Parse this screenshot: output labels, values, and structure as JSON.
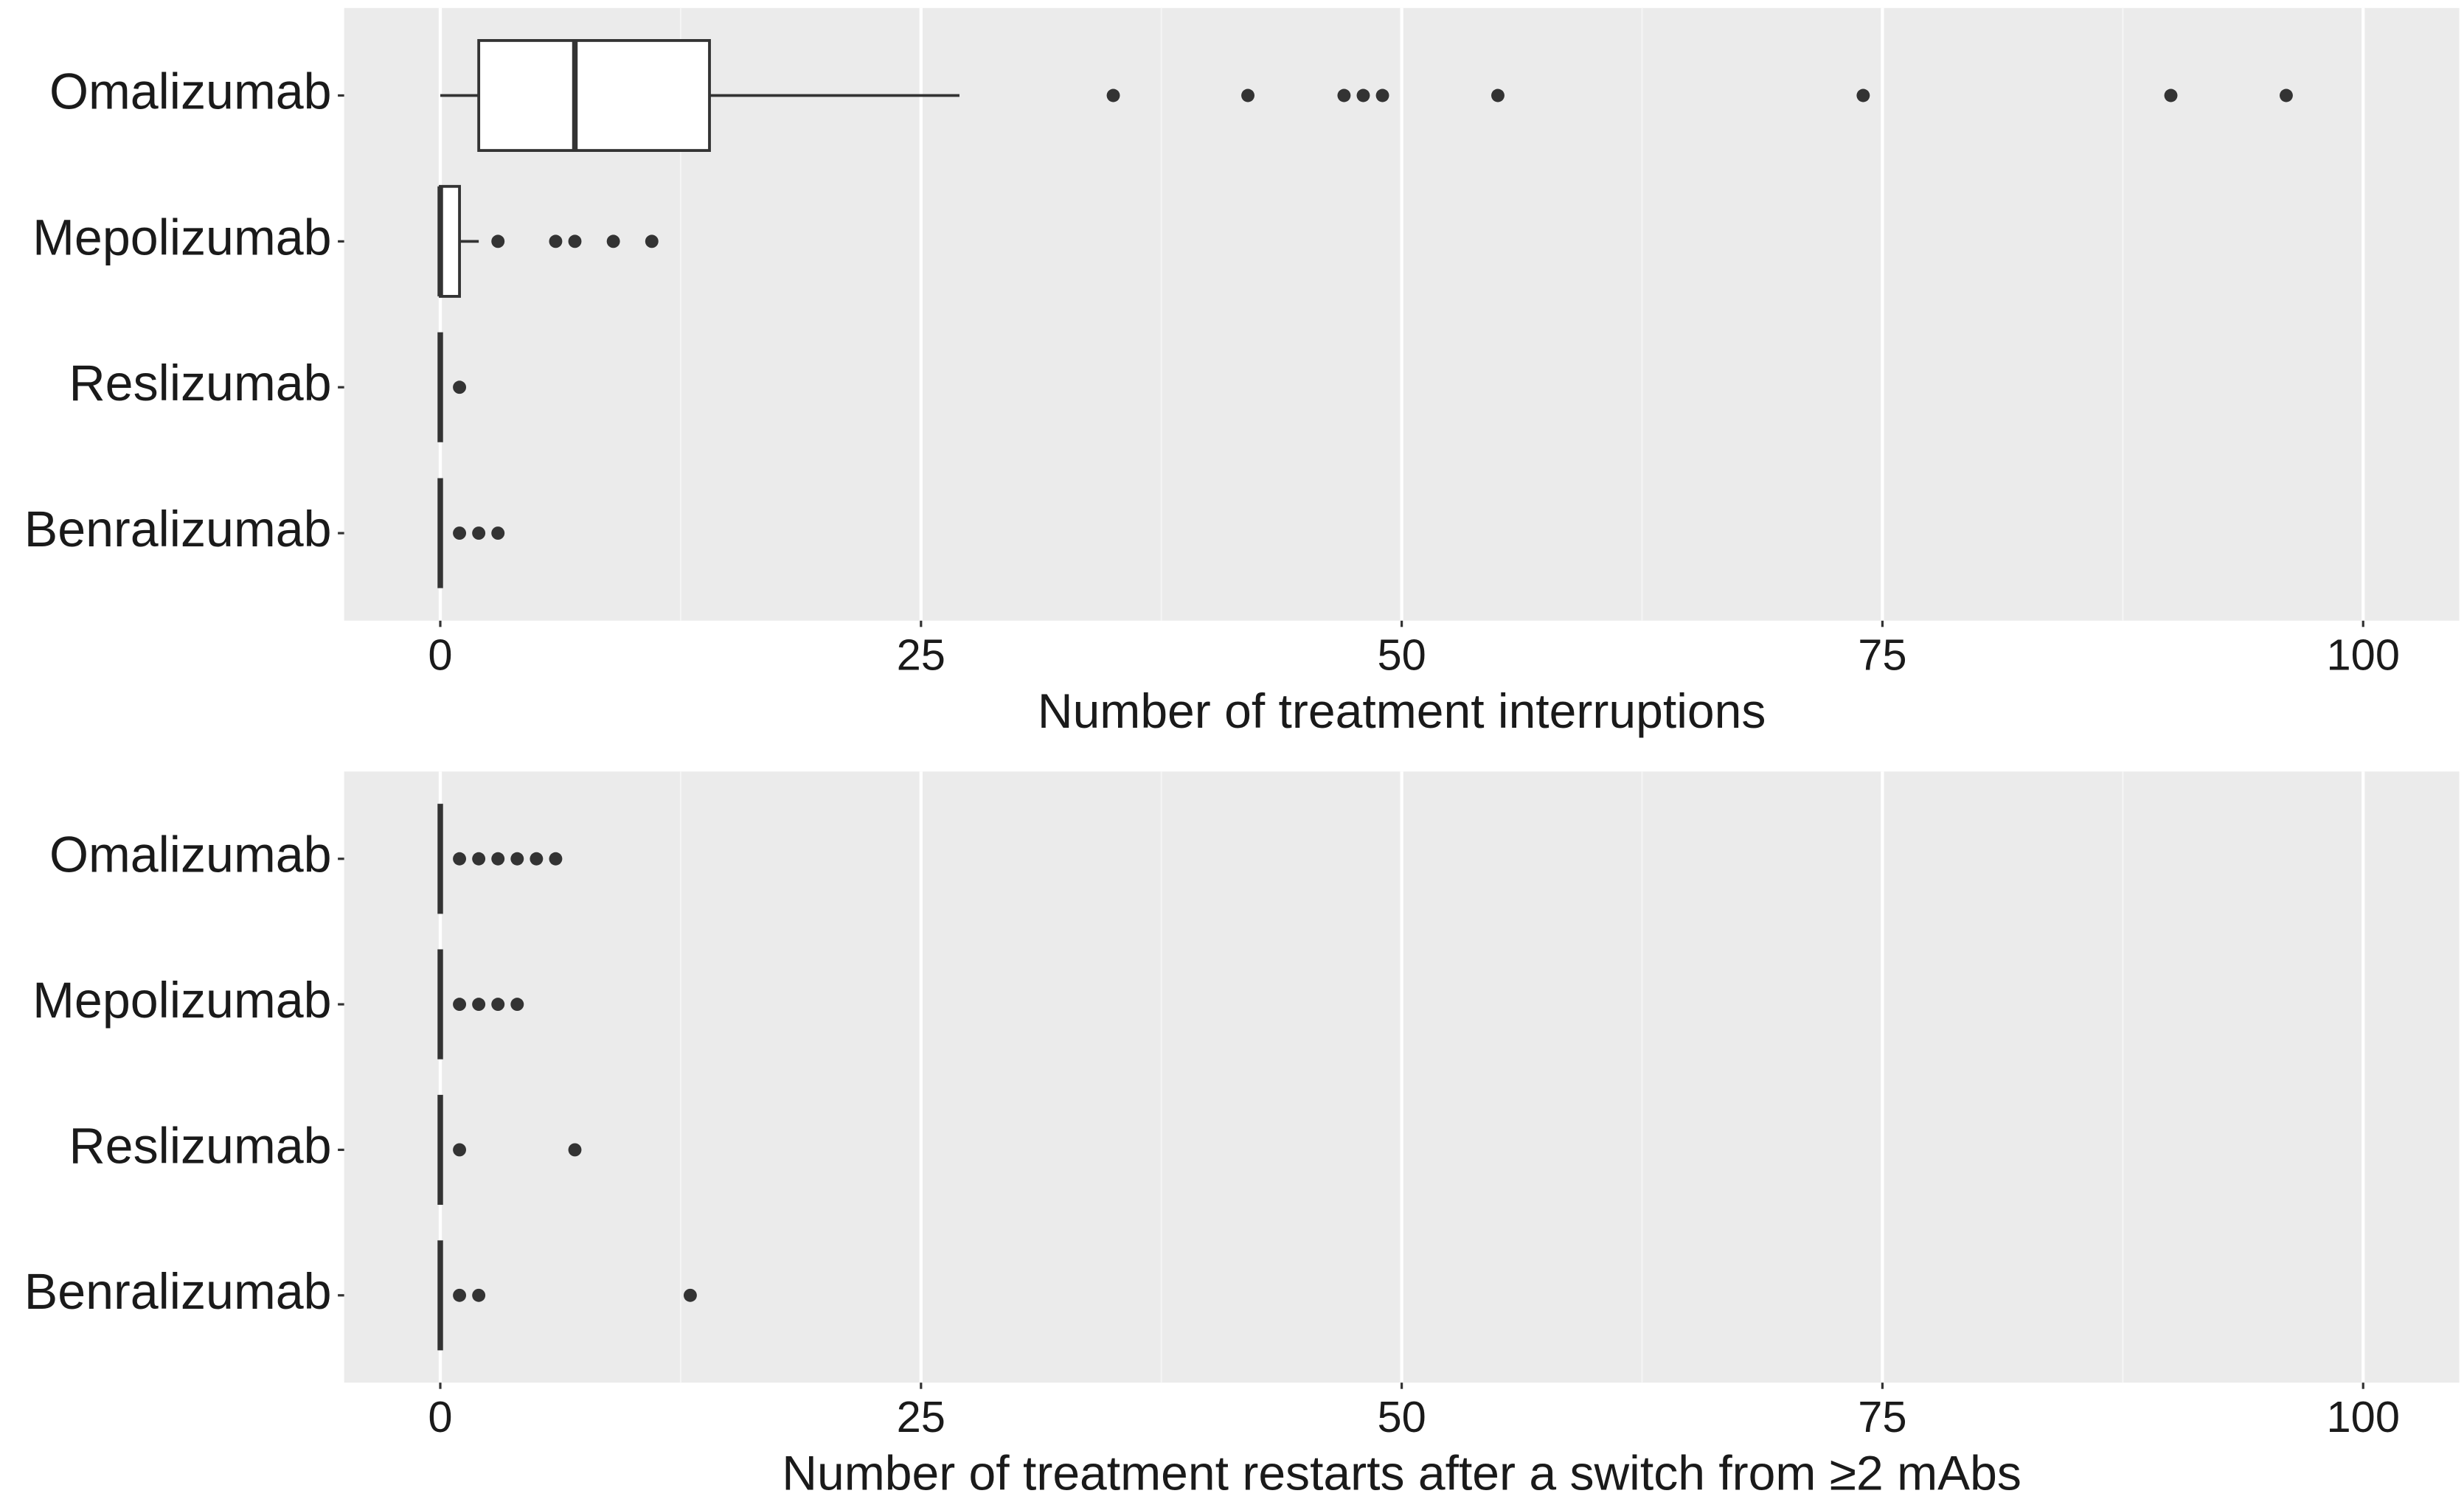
{
  "chart_data": [
    {
      "type": "box",
      "x_label": "Number of treatment interruptions",
      "categories": [
        "Omalizumab",
        "Mepolizumab",
        "Reslizumab",
        "Benralizumab"
      ],
      "boxes": [
        {
          "low": 0,
          "q1": 2,
          "median": 7,
          "q3": 14,
          "high": 27,
          "outliers": [
            35,
            42,
            47,
            48,
            49,
            55,
            74,
            90,
            96
          ]
        },
        {
          "low": 0,
          "q1": 0,
          "median": 0,
          "q3": 1,
          "high": 2,
          "outliers": [
            3,
            6,
            7,
            9,
            11
          ]
        },
        {
          "low": 0,
          "q1": 0,
          "median": 0,
          "q3": 0,
          "high": 0,
          "outliers": [
            1
          ]
        },
        {
          "low": 0,
          "q1": 0,
          "median": 0,
          "q3": 0,
          "high": 0,
          "outliers": [
            1,
            2,
            3
          ]
        }
      ],
      "xlim": [
        -5,
        105
      ],
      "xticks": [
        0,
        25,
        50,
        75,
        100
      ],
      "grid": true
    },
    {
      "type": "box",
      "x_label": "Number of treatment restarts after a switch from ≥2 mAbs",
      "categories": [
        "Omalizumab",
        "Mepolizumab",
        "Reslizumab",
        "Benralizumab"
      ],
      "boxes": [
        {
          "low": 0,
          "q1": 0,
          "median": 0,
          "q3": 0,
          "high": 0,
          "outliers": [
            1,
            2,
            3,
            4,
            5,
            6
          ]
        },
        {
          "low": 0,
          "q1": 0,
          "median": 0,
          "q3": 0,
          "high": 0,
          "outliers": [
            1,
            2,
            3,
            4
          ]
        },
        {
          "low": 0,
          "q1": 0,
          "median": 0,
          "q3": 0,
          "high": 0,
          "outliers": [
            1,
            7
          ]
        },
        {
          "low": 0,
          "q1": 0,
          "median": 0,
          "q3": 0,
          "high": 0,
          "outliers": [
            1,
            2,
            13
          ]
        }
      ],
      "xlim": [
        -5,
        105
      ],
      "xticks": [
        0,
        25,
        50,
        75,
        100
      ],
      "grid": true
    }
  ]
}
